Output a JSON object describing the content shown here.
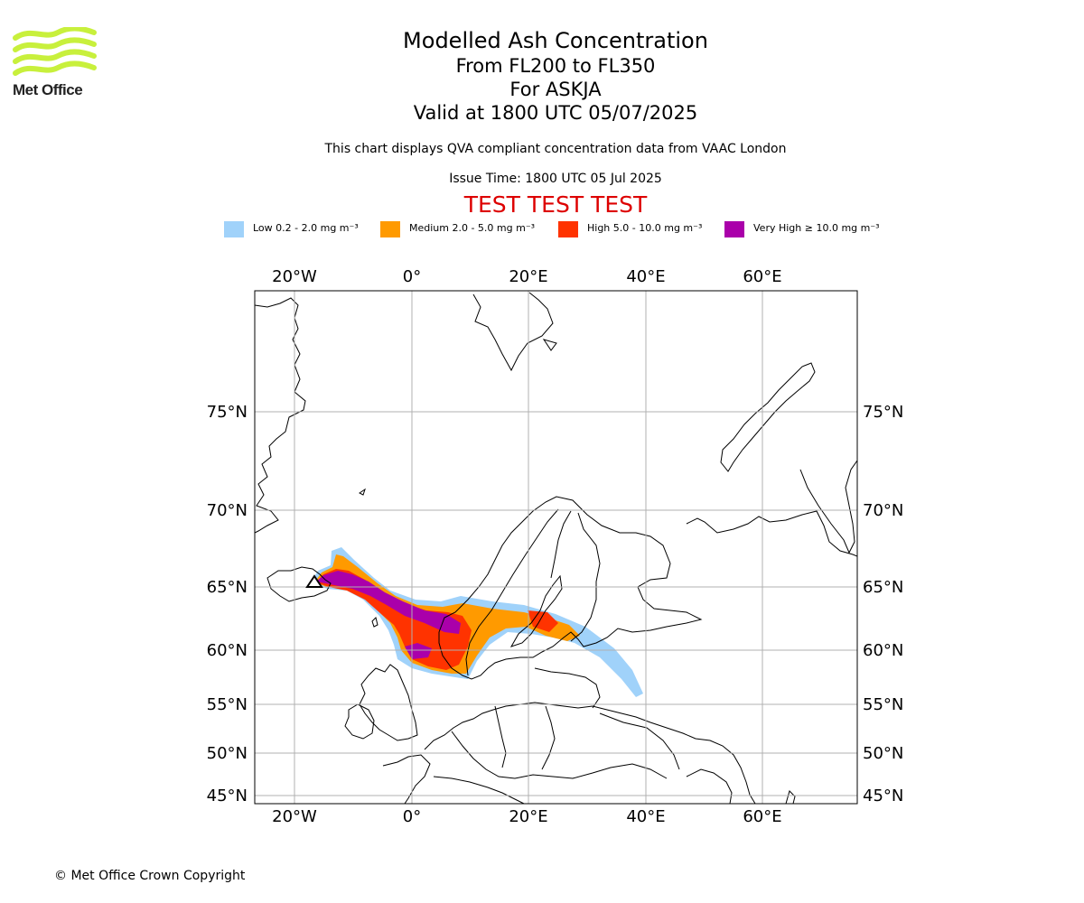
{
  "logo": {
    "text": "Met Office",
    "colors": {
      "wave": "#c8f03c",
      "text": "#222222"
    }
  },
  "title": {
    "line1": "Modelled Ash Concentration",
    "line2": "From FL200 to FL350",
    "line3": "For ASKJA",
    "line4": "Valid at 1800 UTC 05/07/2025"
  },
  "subtitle": "This chart displays QVA compliant concentration data from VAAC London",
  "issue_time": "Issue Time: 1800 UTC 05 Jul 2025",
  "test_banner": "TEST TEST TEST",
  "legend": {
    "items": [
      {
        "label": "Low 0.2 - 2.0 mg m⁻³",
        "color": "#a0d2fa"
      },
      {
        "label": "Medium 2.0 - 5.0 mg m⁻³",
        "color": "#ff9a00"
      },
      {
        "label": "High 5.0 - 10.0 mg m⁻³",
        "color": "#ff3300"
      },
      {
        "label": "Very High  ≥  10.0 mg m⁻³",
        "color": "#aa00aa"
      }
    ]
  },
  "map": {
    "lon_labels": [
      "20°W",
      "0°",
      "20°E",
      "40°E",
      "60°E"
    ],
    "lat_labels": [
      "75°N",
      "70°N",
      "65°N",
      "60°N",
      "55°N",
      "50°N",
      "45°N"
    ],
    "volcano": "ASKJA",
    "colors": {
      "grid": "#b0b0b0",
      "coast": "#000000"
    }
  },
  "copyright": "© Met Office Crown Copyright"
}
